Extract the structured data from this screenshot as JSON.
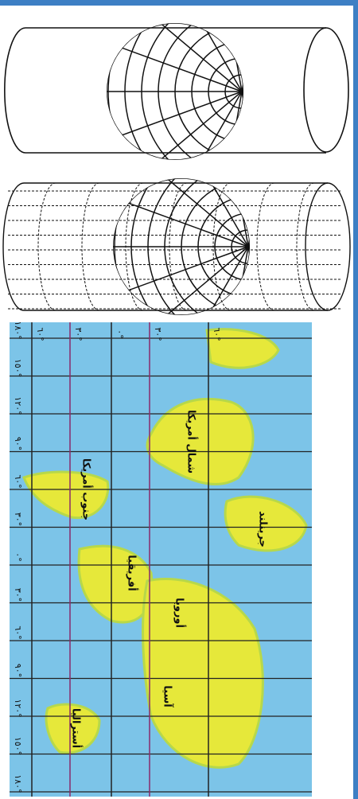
{
  "map": {
    "longitude_labels": [
      "١٨٠°",
      "١٥٠°",
      "١٢٠°",
      "٩٠°",
      "٦٠°",
      "٣٠°",
      "٠°",
      "٣٠°",
      "٦٠°",
      "٩٠°",
      "١٢٠°",
      "١٥٠°",
      "١٨٠°"
    ],
    "latitude_labels": [
      "٦٠°",
      "٣٠°",
      "٠°",
      "٣٠°",
      "٦٠°"
    ],
    "regions": [
      {
        "label": "شمال أمريكا"
      },
      {
        "label": "جنوب أمريكا"
      },
      {
        "label": "أفريقيا"
      },
      {
        "label": "أوروبا"
      },
      {
        "label": "آسيا"
      },
      {
        "label": "أستراليا"
      },
      {
        "label": "جرينلند"
      }
    ]
  }
}
